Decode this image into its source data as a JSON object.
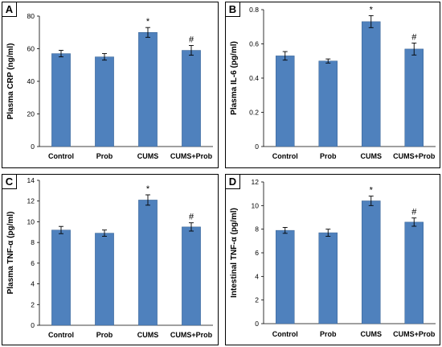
{
  "colors": {
    "bar": "#4F81BD",
    "bar_edge": "#3A6494",
    "border": "#000000"
  },
  "chart_data": [
    {
      "panel": "A",
      "type": "bar",
      "categories": [
        "Control",
        "Prob",
        "CUMS",
        "CUMS+Prob"
      ],
      "values": [
        57,
        55,
        70,
        59
      ],
      "errors": [
        2,
        2,
        3,
        3
      ],
      "annotations": [
        "",
        "",
        "*",
        "#"
      ],
      "ylabel": "Plasma CRP (ng/ml)",
      "ylim": [
        0,
        80
      ],
      "yticks": [
        0,
        20,
        40,
        60,
        80
      ],
      "ytick_labels": [
        "0",
        "20",
        "40",
        "60",
        "80"
      ]
    },
    {
      "panel": "B",
      "type": "bar",
      "categories": [
        "Control",
        "Prob",
        "CUMS",
        "CUMS+Prob"
      ],
      "values": [
        0.53,
        0.5,
        0.73,
        0.57
      ],
      "errors": [
        0.025,
        0.012,
        0.035,
        0.035
      ],
      "annotations": [
        "",
        "",
        "*",
        "#"
      ],
      "ylabel": "Plasma IL-6 (pg/ml)",
      "ylim": [
        0,
        0.8
      ],
      "yticks": [
        0,
        0.2,
        0.4,
        0.6,
        0.8
      ],
      "ytick_labels": [
        "0",
        "0.2",
        "0.4",
        "0.6",
        "0.8"
      ]
    },
    {
      "panel": "C",
      "type": "bar",
      "categories": [
        "Control",
        "Prob",
        "CUMS",
        "CUMS+Prob"
      ],
      "values": [
        9.2,
        8.9,
        12.1,
        9.5
      ],
      "errors": [
        0.35,
        0.3,
        0.5,
        0.4
      ],
      "annotations": [
        "",
        "",
        "*",
        "#"
      ],
      "ylabel": "Plasma TNF-α (pg/ml)",
      "ylim": [
        0,
        14
      ],
      "yticks": [
        0,
        2,
        4,
        6,
        8,
        10,
        12,
        14
      ],
      "ytick_labels": [
        "0",
        "2",
        "4",
        "6",
        "8",
        "10",
        "12",
        "14"
      ]
    },
    {
      "panel": "D",
      "type": "bar",
      "categories": [
        "Control",
        "Prob",
        "CUMS",
        "CUMS+Prob"
      ],
      "values": [
        7.9,
        7.7,
        10.4,
        8.6
      ],
      "errors": [
        0.25,
        0.3,
        0.4,
        0.35
      ],
      "annotations": [
        "",
        "",
        "*",
        "#"
      ],
      "ylabel": "Intestinal TNF-α (pg/ml)",
      "ylim": [
        0,
        12
      ],
      "yticks": [
        0,
        2,
        4,
        6,
        8,
        10,
        12
      ],
      "ytick_labels": [
        "0",
        "2",
        "4",
        "6",
        "8",
        "10",
        "12"
      ]
    }
  ]
}
